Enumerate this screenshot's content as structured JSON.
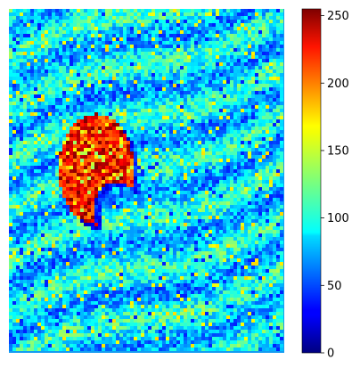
{
  "chart_data": {
    "type": "heatmap",
    "title": "",
    "xlabel": "",
    "ylabel": "",
    "axes_visible": false,
    "grid": false,
    "colormap": "jet",
    "value_range": [
      0,
      255
    ],
    "colorbar": {
      "position": "right",
      "ticks": [
        0,
        50,
        100,
        150,
        200,
        250
      ],
      "tick_labels": [
        "0",
        "50",
        "100",
        "150",
        "200",
        "250"
      ]
    },
    "description_of_content": "Noisy field with mostly low-to-mid values and diagonal wave streaks; one compact high-value region near the left-center.",
    "value_summary": {
      "background_typical": 90,
      "background_streak_high": 150,
      "background_low": 40,
      "feature_peak": 250,
      "feature_typical": 215,
      "shadow_edge": 15
    }
  }
}
